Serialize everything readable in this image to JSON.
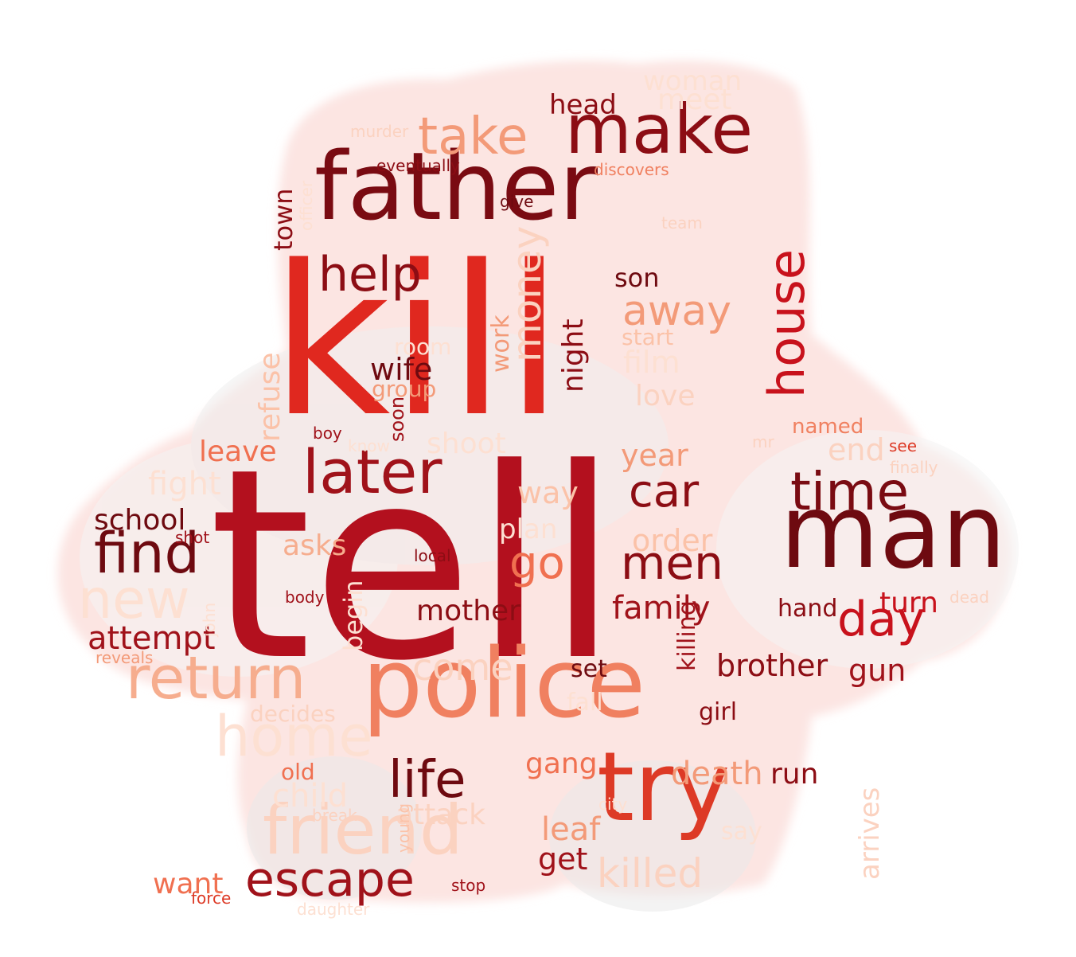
{
  "cloud": {
    "words": [
      {
        "text": "tell",
        "color": "#b3101e"
      },
      {
        "text": "kill",
        "color": "#e0281f"
      },
      {
        "text": "father",
        "color": "#7a0b12"
      },
      {
        "text": "man",
        "color": "#6e0a10"
      },
      {
        "text": "police",
        "color": "#f08060"
      },
      {
        "text": "try",
        "color": "#dd3a26"
      },
      {
        "text": "make",
        "color": "#8c0d14"
      },
      {
        "text": "take",
        "color": "#f39a78"
      },
      {
        "text": "house",
        "color": "#c8121c"
      },
      {
        "text": "help",
        "color": "#8c0d14"
      },
      {
        "text": "later",
        "color": "#a0121a"
      },
      {
        "text": "time",
        "color": "#7a0b12"
      },
      {
        "text": "find",
        "color": "#6e0a10"
      },
      {
        "text": "return",
        "color": "#f6ad8e"
      },
      {
        "text": "friend",
        "color": "#fbd2c0"
      },
      {
        "text": "escape",
        "color": "#a0121a"
      },
      {
        "text": "day",
        "color": "#c8121c"
      },
      {
        "text": "car",
        "color": "#8c0d14"
      },
      {
        "text": "men",
        "color": "#8c0d14"
      },
      {
        "text": "go",
        "color": "#f07050"
      },
      {
        "text": "life",
        "color": "#6e0a10"
      },
      {
        "text": "money",
        "color": "#fbd2c0"
      },
      {
        "text": "away",
        "color": "#f39a78"
      },
      {
        "text": "home",
        "color": "#fde0d2"
      },
      {
        "text": "new",
        "color": "#fde0d2"
      },
      {
        "text": "killed",
        "color": "#fbd2c0"
      },
      {
        "text": "head",
        "color": "#8c0d14"
      },
      {
        "text": "woman",
        "color": "#fde0d2"
      },
      {
        "text": "meet",
        "color": "#fde0d2"
      },
      {
        "text": "son",
        "color": "#6e0a10"
      },
      {
        "text": "night",
        "color": "#8c0d14"
      },
      {
        "text": "work",
        "color": "#f39a78"
      },
      {
        "text": "start",
        "color": "#fbc2a8"
      },
      {
        "text": "film",
        "color": "#fde0d2"
      },
      {
        "text": "love",
        "color": "#fbd2c0"
      },
      {
        "text": "wife",
        "color": "#6e0a10"
      },
      {
        "text": "group",
        "color": "#f39a78"
      },
      {
        "text": "room",
        "color": "#fde0d2"
      },
      {
        "text": "refuse",
        "color": "#fbc2a8"
      },
      {
        "text": "town",
        "color": "#8c0d14"
      },
      {
        "text": "soon",
        "color": "#a0121a"
      },
      {
        "text": "eventually",
        "color": "#8c0d14"
      },
      {
        "text": "discovers",
        "color": "#f08060"
      },
      {
        "text": "give",
        "color": "#6e0a10"
      },
      {
        "text": "team",
        "color": "#fbd2c0"
      },
      {
        "text": "murder",
        "color": "#fbd2c0"
      },
      {
        "text": "officer",
        "color": "#fde0d2"
      },
      {
        "text": "named",
        "color": "#f08060"
      },
      {
        "text": "year",
        "color": "#f39a78"
      },
      {
        "text": "end",
        "color": "#fbd2c0"
      },
      {
        "text": "shoot",
        "color": "#fde0d2"
      },
      {
        "text": "see",
        "color": "#dd3a26"
      },
      {
        "text": "finally",
        "color": "#fbd2c0"
      },
      {
        "text": "mr",
        "color": "#fbd2c0"
      },
      {
        "text": "leave",
        "color": "#f07050"
      },
      {
        "text": "boy",
        "color": "#a0121a"
      },
      {
        "text": "know",
        "color": "#fde0d2"
      },
      {
        "text": "fight",
        "color": "#fde0d2"
      },
      {
        "text": "way",
        "color": "#fbc2a8"
      },
      {
        "text": "plan",
        "color": "#fde0d2"
      },
      {
        "text": "order",
        "color": "#fbc2a8"
      },
      {
        "text": "school",
        "color": "#6e0a10"
      },
      {
        "text": "shot",
        "color": "#a0121a"
      },
      {
        "text": "asks",
        "color": "#f6ad8e"
      },
      {
        "text": "local",
        "color": "#8c0d14"
      },
      {
        "text": "family",
        "color": "#a0121a"
      },
      {
        "text": "mother",
        "color": "#8c0d14"
      },
      {
        "text": "turn",
        "color": "#c8121c"
      },
      {
        "text": "hand",
        "color": "#8c0d14"
      },
      {
        "text": "dead",
        "color": "#fbd2c0"
      },
      {
        "text": "attempt",
        "color": "#a0121a"
      },
      {
        "text": "begin",
        "color": "#fde0d2"
      },
      {
        "text": "body",
        "color": "#a0121a"
      },
      {
        "text": "john",
        "color": "#fde0d2"
      },
      {
        "text": "reveals",
        "color": "#f39a78"
      },
      {
        "text": "come",
        "color": "#fbd2c0"
      },
      {
        "text": "brother",
        "color": "#8c0d14"
      },
      {
        "text": "gun",
        "color": "#a0121a"
      },
      {
        "text": "set",
        "color": "#6e0a10"
      },
      {
        "text": "killing",
        "color": "#a0121a"
      },
      {
        "text": "decides",
        "color": "#fbd2c0"
      },
      {
        "text": "fall",
        "color": "#fde0d2"
      },
      {
        "text": "girl",
        "color": "#8c0d14"
      },
      {
        "text": "gang",
        "color": "#f07050"
      },
      {
        "text": "death",
        "color": "#f39a78"
      },
      {
        "text": "run",
        "color": "#8c0d14"
      },
      {
        "text": "arrives",
        "color": "#fbd2c0"
      },
      {
        "text": "old",
        "color": "#f07050"
      },
      {
        "text": "child",
        "color": "#fde0d2"
      },
      {
        "text": "attack",
        "color": "#fbd2c0"
      },
      {
        "text": "city",
        "color": "#fde0d2"
      },
      {
        "text": "break",
        "color": "#fbd2c0"
      },
      {
        "text": "young",
        "color": "#fbc2a8"
      },
      {
        "text": "leaf",
        "color": "#f39a78"
      },
      {
        "text": "say",
        "color": "#fde0d2"
      },
      {
        "text": "get",
        "color": "#a0121a"
      },
      {
        "text": "want",
        "color": "#f07050"
      },
      {
        "text": "force",
        "color": "#dd3a26"
      },
      {
        "text": "stop",
        "color": "#a0121a"
      },
      {
        "text": "daughter",
        "color": "#fde0d2"
      }
    ]
  }
}
